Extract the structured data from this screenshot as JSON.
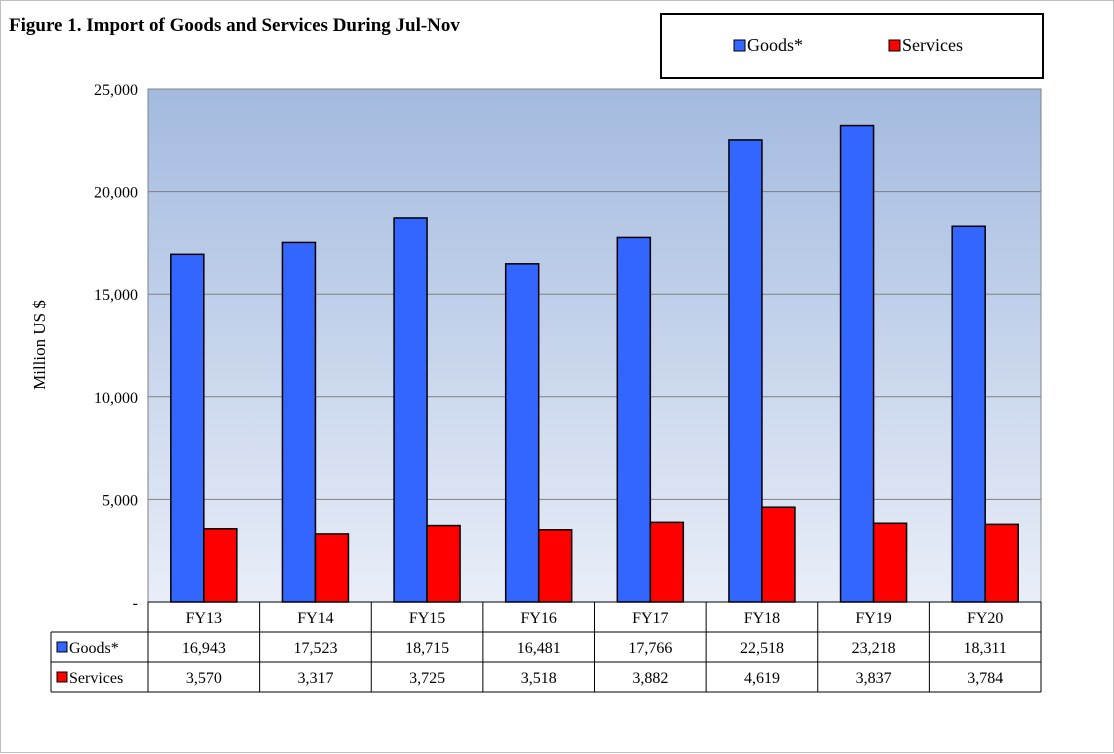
{
  "chart_data": {
    "type": "bar",
    "title": "Figure 1. Import of Goods and Services  During Jul-Nov",
    "ylabel": "Million US $",
    "xlabel": "",
    "categories": [
      "FY13",
      "FY14",
      "FY15",
      "FY16",
      "FY17",
      "FY18",
      "FY19",
      "FY20"
    ],
    "series": [
      {
        "name": "Goods*",
        "color": "#3366ff",
        "values": [
          16943,
          17523,
          18715,
          16481,
          17766,
          22518,
          23218,
          18311
        ],
        "labels": [
          "16,943",
          "17,523",
          "18,715",
          "16,481",
          "17,766",
          "22,518",
          "23,218",
          "18,311"
        ]
      },
      {
        "name": "Services",
        "color": "#ff0000",
        "values": [
          3570,
          3317,
          3725,
          3518,
          3882,
          4619,
          3837,
          3784
        ],
        "labels": [
          "3,570",
          "3,317",
          "3,725",
          "3,518",
          "3,882",
          "4,619",
          "3,837",
          "3,784"
        ]
      }
    ],
    "ylim": [
      0,
      25000
    ],
    "yticks": [
      0,
      5000,
      10000,
      15000,
      20000,
      25000
    ],
    "ytick_labels": [
      "-",
      "5,000",
      "10,000",
      "15,000",
      "20,000",
      "25,000"
    ],
    "grid": true,
    "legend_position": "top-right",
    "data_table": true,
    "plot_background": [
      "#a3badf",
      "#e9eef8"
    ]
  }
}
